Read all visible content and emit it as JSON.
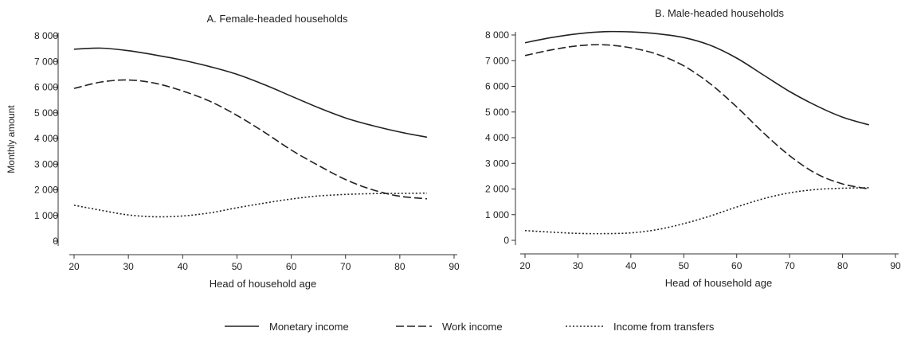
{
  "chart_data": [
    {
      "type": "line",
      "title": "A. Female-headed households",
      "xlabel": "Head of household age",
      "ylabel": "Monthly amount",
      "xlim": [
        20,
        90
      ],
      "ylim": [
        0,
        8000
      ],
      "xticks": [
        "20",
        "30",
        "40",
        "50",
        "60",
        "70",
        "80",
        "90"
      ],
      "yticks": [
        "0",
        "1 000",
        "2 000",
        "3 000",
        "4 000",
        "5 000",
        "6 000",
        "7 000",
        "8 000"
      ],
      "series": [
        {
          "name": "Monetary income",
          "style": "solid",
          "x": [
            20,
            25,
            30,
            35,
            40,
            45,
            50,
            55,
            60,
            65,
            70,
            75,
            80,
            85
          ],
          "y": [
            7480,
            7520,
            7420,
            7250,
            7050,
            6800,
            6500,
            6100,
            5650,
            5200,
            4800,
            4500,
            4250,
            4050
          ]
        },
        {
          "name": "Work income",
          "style": "dashed",
          "x": [
            20,
            25,
            30,
            35,
            40,
            45,
            50,
            55,
            60,
            65,
            70,
            75,
            80,
            85
          ],
          "y": [
            5950,
            6200,
            6280,
            6150,
            5850,
            5450,
            4900,
            4250,
            3550,
            2950,
            2400,
            2000,
            1750,
            1650
          ]
        },
        {
          "name": "Income from transfers",
          "style": "dotted",
          "x": [
            20,
            25,
            30,
            35,
            40,
            45,
            50,
            55,
            60,
            65,
            70,
            75,
            80,
            85
          ],
          "y": [
            1400,
            1200,
            1020,
            950,
            980,
            1100,
            1300,
            1480,
            1640,
            1760,
            1820,
            1850,
            1860,
            1870
          ]
        }
      ]
    },
    {
      "type": "line",
      "title": "B. Male-headed households",
      "xlabel": "Head of household age",
      "ylabel": "",
      "xlim": [
        20,
        90
      ],
      "ylim": [
        0,
        8000
      ],
      "xticks": [
        "20",
        "30",
        "40",
        "50",
        "60",
        "70",
        "80",
        "90"
      ],
      "yticks": [
        "0",
        "1 000",
        "2 000",
        "3 000",
        "4 000",
        "5 000",
        "6 000",
        "7 000",
        "8 000"
      ],
      "series": [
        {
          "name": "Monetary income",
          "style": "solid",
          "x": [
            20,
            25,
            30,
            35,
            40,
            45,
            50,
            55,
            60,
            65,
            70,
            75,
            80,
            85
          ],
          "y": [
            7700,
            7900,
            8050,
            8130,
            8120,
            8050,
            7900,
            7600,
            7100,
            6450,
            5800,
            5250,
            4800,
            4500
          ]
        },
        {
          "name": "Work income",
          "style": "dashed",
          "x": [
            20,
            25,
            30,
            35,
            40,
            45,
            50,
            55,
            60,
            65,
            70,
            75,
            80,
            85
          ],
          "y": [
            7200,
            7420,
            7580,
            7620,
            7500,
            7250,
            6800,
            6100,
            5200,
            4200,
            3300,
            2600,
            2200,
            2000
          ]
        },
        {
          "name": "Income from transfers",
          "style": "dotted",
          "x": [
            20,
            25,
            30,
            35,
            40,
            45,
            50,
            55,
            60,
            65,
            70,
            75,
            80,
            85
          ],
          "y": [
            380,
            320,
            270,
            260,
            290,
            420,
            650,
            950,
            1300,
            1620,
            1850,
            1980,
            2030,
            2050
          ]
        }
      ]
    }
  ],
  "legend": {
    "items": [
      {
        "label": "Monetary income",
        "style": "solid"
      },
      {
        "label": "Work income",
        "style": "dashed"
      },
      {
        "label": "Income from transfers",
        "style": "dotted"
      }
    ]
  }
}
